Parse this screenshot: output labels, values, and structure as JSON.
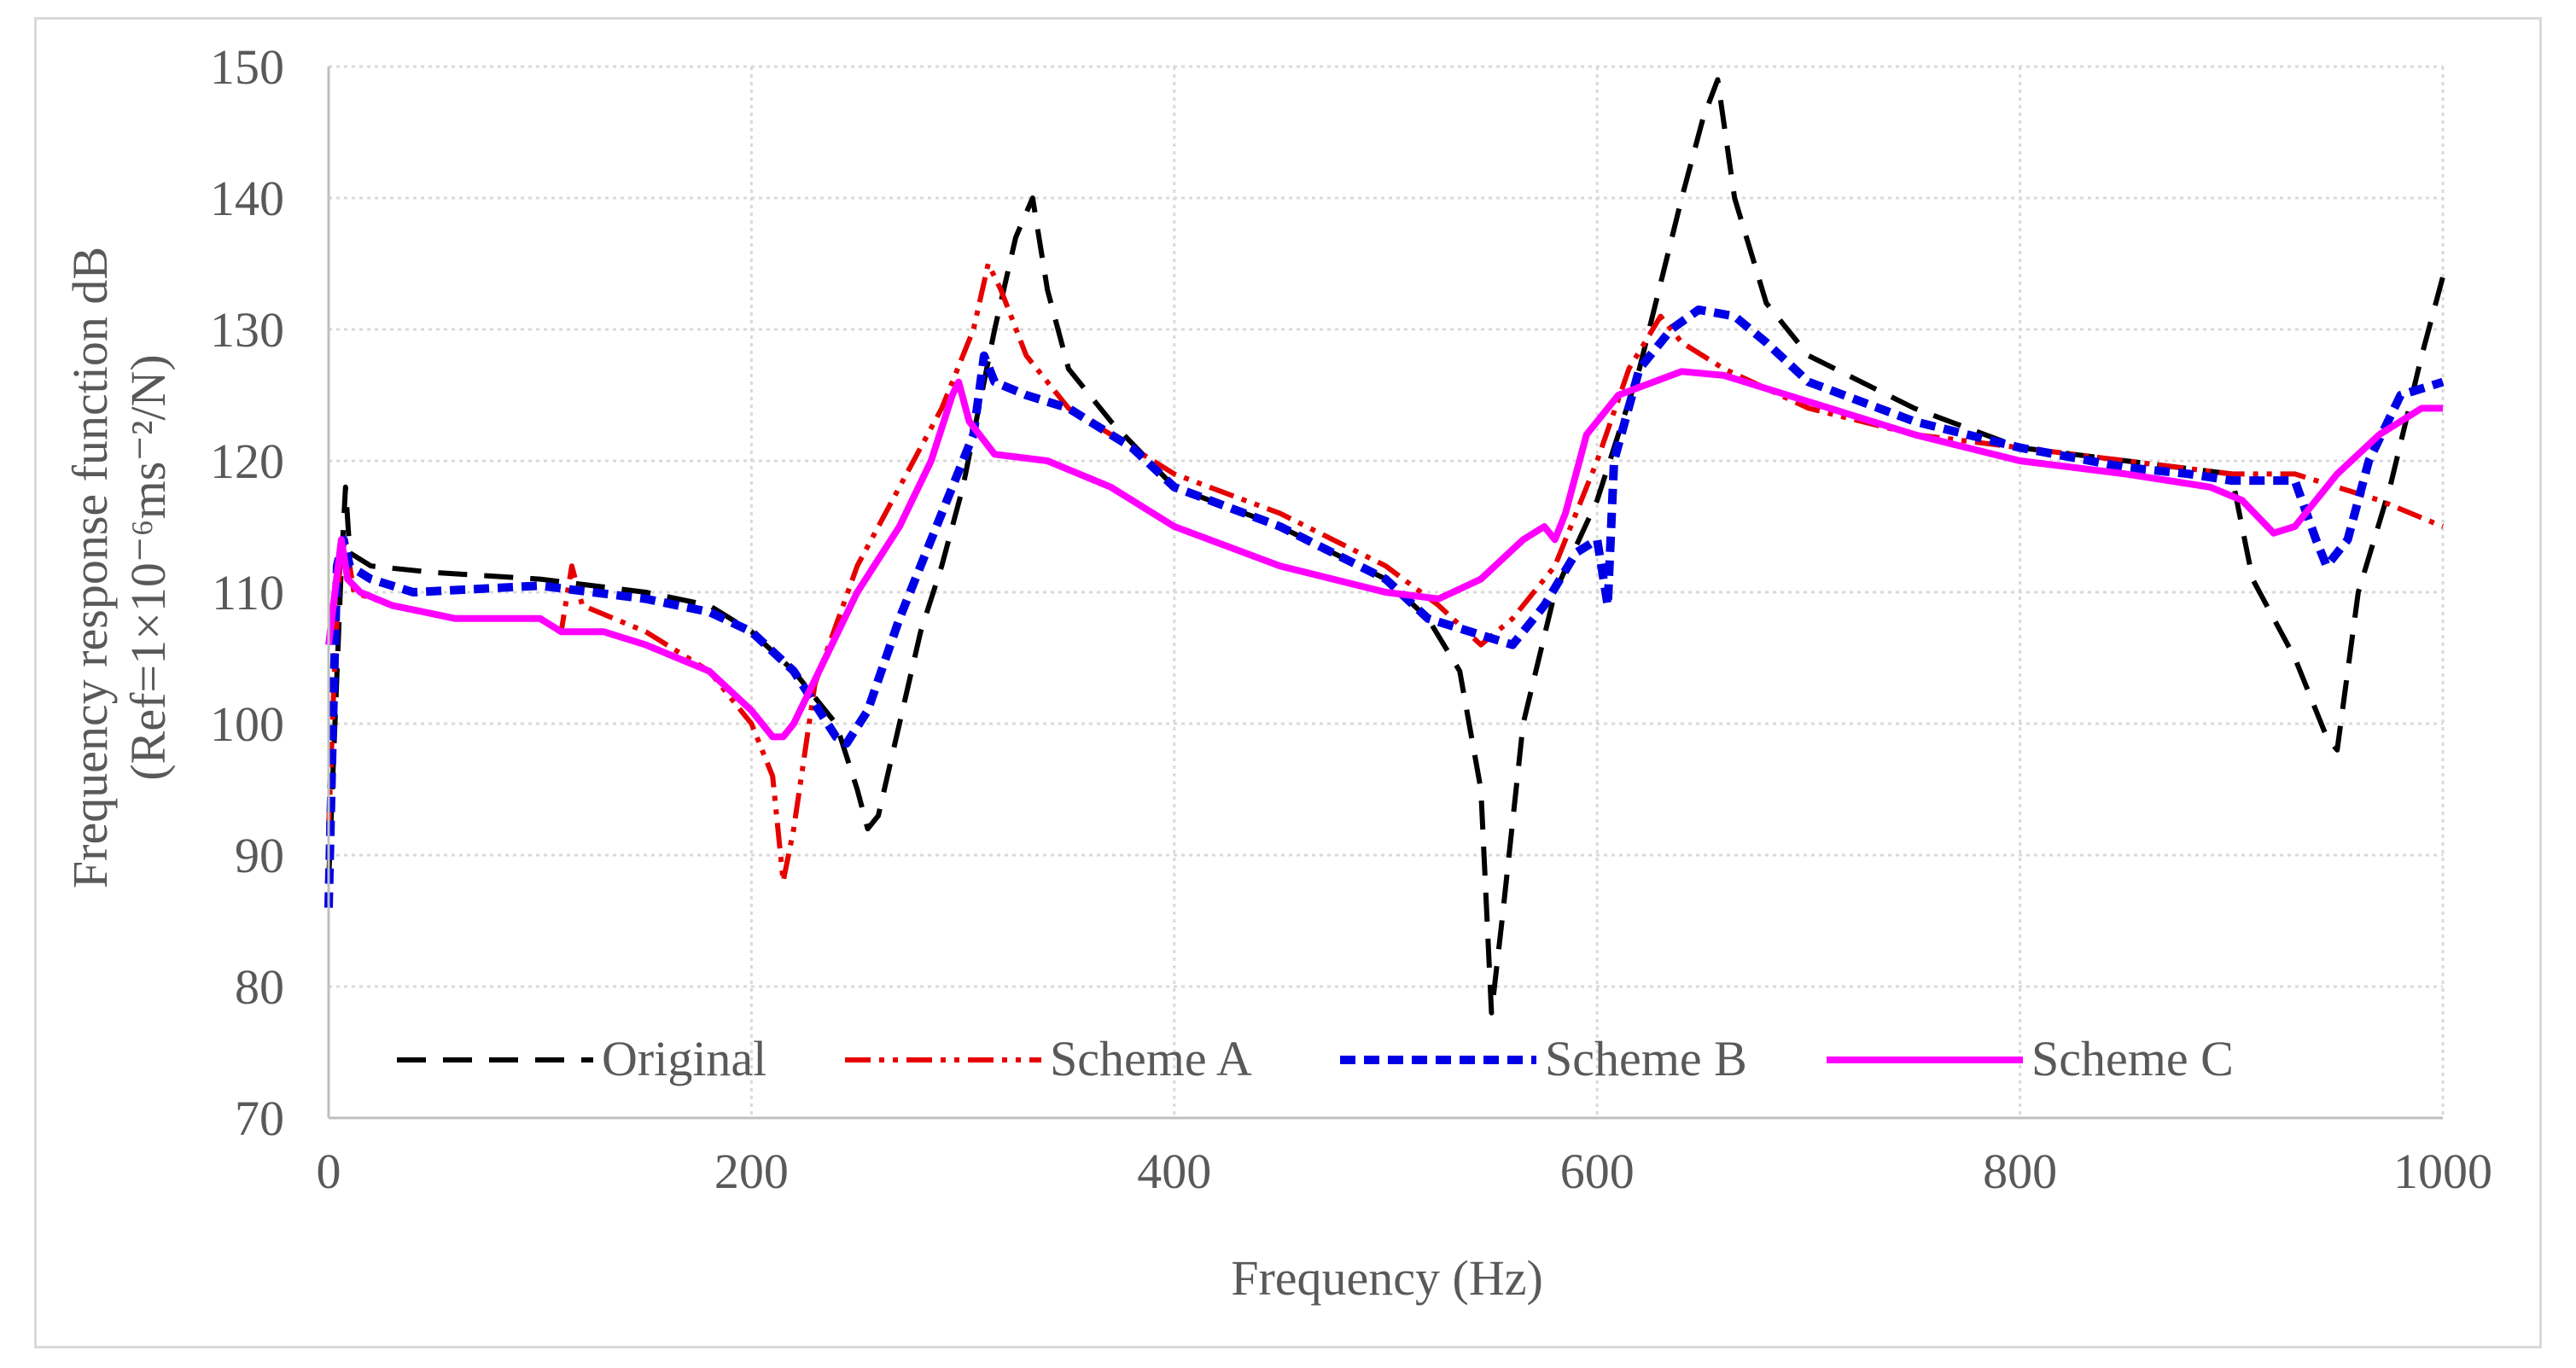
{
  "chart_data": {
    "type": "line",
    "title": "",
    "xlabel": "Frequency (Hz)",
    "ylabel_line1": "Frequency response function dB",
    "ylabel_line2": "(Ref=1×10⁻⁶ms⁻²/N)",
    "xlim": [
      0,
      1000
    ],
    "ylim": [
      70,
      150
    ],
    "xticks": [
      0,
      200,
      400,
      600,
      800,
      1000
    ],
    "yticks": [
      70,
      80,
      90,
      100,
      110,
      120,
      130,
      140,
      150
    ],
    "grid": true,
    "legend_position": "bottom-inside",
    "series": [
      {
        "name": "Original",
        "color": "#000000",
        "style": "long-dash",
        "points": [
          [
            0,
            88
          ],
          [
            3,
            100
          ],
          [
            6,
            112
          ],
          [
            8,
            118
          ],
          [
            10,
            113
          ],
          [
            20,
            112
          ],
          [
            50,
            111.5
          ],
          [
            100,
            111
          ],
          [
            150,
            110
          ],
          [
            180,
            109
          ],
          [
            200,
            107
          ],
          [
            220,
            104
          ],
          [
            240,
            100
          ],
          [
            250,
            95
          ],
          [
            255,
            92
          ],
          [
            260,
            93
          ],
          [
            270,
            100
          ],
          [
            280,
            107
          ],
          [
            290,
            112
          ],
          [
            300,
            118
          ],
          [
            315,
            130
          ],
          [
            325,
            137
          ],
          [
            333,
            140
          ],
          [
            340,
            133
          ],
          [
            350,
            127
          ],
          [
            370,
            123
          ],
          [
            400,
            118
          ],
          [
            450,
            115
          ],
          [
            500,
            111
          ],
          [
            520,
            108
          ],
          [
            535,
            104
          ],
          [
            545,
            95
          ],
          [
            550,
            78
          ],
          [
            555,
            85
          ],
          [
            565,
            100
          ],
          [
            580,
            110
          ],
          [
            600,
            117
          ],
          [
            620,
            127
          ],
          [
            640,
            140
          ],
          [
            650,
            146
          ],
          [
            657,
            149
          ],
          [
            665,
            140
          ],
          [
            680,
            132
          ],
          [
            700,
            128
          ],
          [
            750,
            124
          ],
          [
            800,
            121
          ],
          [
            850,
            120
          ],
          [
            900,
            119
          ],
          [
            910,
            111
          ],
          [
            930,
            105
          ],
          [
            945,
            99
          ],
          [
            950,
            98
          ],
          [
            960,
            110
          ],
          [
            975,
            118
          ],
          [
            990,
            128
          ],
          [
            1000,
            134
          ]
        ]
      },
      {
        "name": "Scheme A",
        "color": "#e60000",
        "style": "dash-dot-dot",
        "points": [
          [
            0,
            92
          ],
          [
            3,
            105
          ],
          [
            6,
            114
          ],
          [
            8,
            114
          ],
          [
            12,
            110
          ],
          [
            30,
            109
          ],
          [
            60,
            108
          ],
          [
            100,
            108
          ],
          [
            110,
            107
          ],
          [
            115,
            112
          ],
          [
            120,
            109
          ],
          [
            150,
            107
          ],
          [
            180,
            104
          ],
          [
            200,
            100
          ],
          [
            210,
            96
          ],
          [
            215,
            88
          ],
          [
            220,
            92
          ],
          [
            230,
            103
          ],
          [
            250,
            112
          ],
          [
            270,
            118
          ],
          [
            290,
            124
          ],
          [
            305,
            130
          ],
          [
            312,
            135
          ],
          [
            318,
            133
          ],
          [
            330,
            128
          ],
          [
            350,
            124
          ],
          [
            380,
            121
          ],
          [
            400,
            119
          ],
          [
            450,
            116
          ],
          [
            500,
            112
          ],
          [
            525,
            109
          ],
          [
            545,
            106
          ],
          [
            560,
            108
          ],
          [
            580,
            112
          ],
          [
            600,
            120
          ],
          [
            615,
            127
          ],
          [
            630,
            131
          ],
          [
            640,
            129
          ],
          [
            660,
            127
          ],
          [
            700,
            124
          ],
          [
            750,
            122
          ],
          [
            800,
            121
          ],
          [
            850,
            120
          ],
          [
            900,
            119
          ],
          [
            930,
            119
          ],
          [
            970,
            117
          ],
          [
            1000,
            115
          ]
        ]
      },
      {
        "name": "Scheme B",
        "color": "#0000e6",
        "style": "short-dash",
        "points": [
          [
            0,
            86
          ],
          [
            2,
            100
          ],
          [
            4,
            112
          ],
          [
            7,
            114
          ],
          [
            10,
            112
          ],
          [
            20,
            111
          ],
          [
            40,
            110
          ],
          [
            100,
            110.5
          ],
          [
            150,
            109.5
          ],
          [
            180,
            108.5
          ],
          [
            200,
            107
          ],
          [
            220,
            104
          ],
          [
            240,
            99
          ],
          [
            245,
            98.5
          ],
          [
            255,
            101
          ],
          [
            270,
            108
          ],
          [
            290,
            116
          ],
          [
            305,
            122
          ],
          [
            310,
            128
          ],
          [
            315,
            126
          ],
          [
            330,
            125
          ],
          [
            350,
            124
          ],
          [
            380,
            121
          ],
          [
            400,
            118
          ],
          [
            450,
            115
          ],
          [
            500,
            111
          ],
          [
            520,
            108
          ],
          [
            540,
            107
          ],
          [
            560,
            106
          ],
          [
            575,
            109
          ],
          [
            590,
            113
          ],
          [
            600,
            114
          ],
          [
            605,
            109
          ],
          [
            608,
            120
          ],
          [
            620,
            127
          ],
          [
            635,
            130
          ],
          [
            648,
            131.5
          ],
          [
            665,
            131
          ],
          [
            680,
            129
          ],
          [
            700,
            126
          ],
          [
            750,
            123
          ],
          [
            800,
            121
          ],
          [
            850,
            119.5
          ],
          [
            880,
            119
          ],
          [
            900,
            118.5
          ],
          [
            930,
            118.5
          ],
          [
            940,
            114
          ],
          [
            945,
            112
          ],
          [
            955,
            114
          ],
          [
            965,
            120
          ],
          [
            980,
            125
          ],
          [
            1000,
            126
          ]
        ]
      },
      {
        "name": "Scheme C",
        "color": "#ff00ff",
        "style": "solid",
        "points": [
          [
            0,
            106
          ],
          [
            3,
            110
          ],
          [
            6,
            114
          ],
          [
            9,
            111
          ],
          [
            15,
            110
          ],
          [
            30,
            109
          ],
          [
            60,
            108
          ],
          [
            80,
            108
          ],
          [
            100,
            108
          ],
          [
            110,
            107
          ],
          [
            130,
            107
          ],
          [
            150,
            106
          ],
          [
            180,
            104
          ],
          [
            200,
            101
          ],
          [
            210,
            99
          ],
          [
            215,
            99
          ],
          [
            220,
            100
          ],
          [
            235,
            105
          ],
          [
            250,
            110
          ],
          [
            270,
            115
          ],
          [
            285,
            120
          ],
          [
            295,
            125
          ],
          [
            298,
            126
          ],
          [
            303,
            123
          ],
          [
            315,
            120.5
          ],
          [
            340,
            120
          ],
          [
            370,
            118
          ],
          [
            400,
            115
          ],
          [
            450,
            112
          ],
          [
            500,
            110
          ],
          [
            525,
            109.5
          ],
          [
            545,
            111
          ],
          [
            565,
            114
          ],
          [
            575,
            115
          ],
          [
            580,
            114
          ],
          [
            585,
            116
          ],
          [
            595,
            122
          ],
          [
            610,
            125
          ],
          [
            640,
            126.8
          ],
          [
            660,
            126.5
          ],
          [
            700,
            124.5
          ],
          [
            750,
            122
          ],
          [
            800,
            120
          ],
          [
            850,
            119
          ],
          [
            890,
            118
          ],
          [
            905,
            117
          ],
          [
            920,
            114.5
          ],
          [
            930,
            115
          ],
          [
            950,
            119
          ],
          [
            970,
            122
          ],
          [
            990,
            124
          ],
          [
            1000,
            124
          ]
        ]
      }
    ]
  }
}
